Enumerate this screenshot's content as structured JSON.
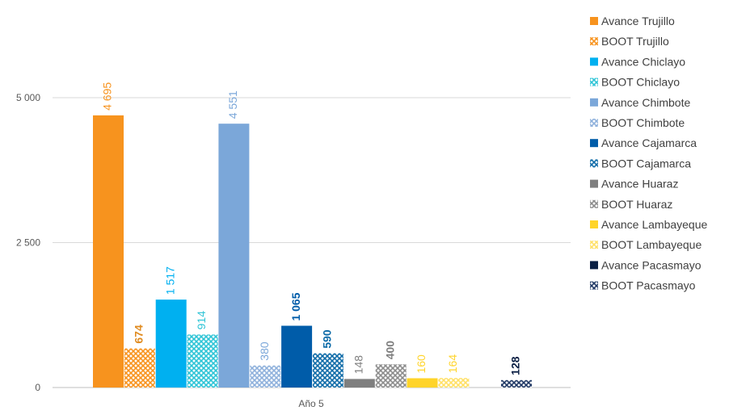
{
  "chart_data": {
    "type": "bar",
    "title": "",
    "xlabel": "",
    "ylabel": "",
    "categories": [
      "Año 5"
    ],
    "ylim": [
      0,
      6000
    ],
    "yticks": [
      0,
      2500,
      5000
    ],
    "ytick_labels": [
      "0",
      "2 500",
      "5 000"
    ],
    "grid": true,
    "legend_position": "right",
    "series": [
      {
        "name": "Avance Trujillo",
        "values": [
          4695
        ],
        "label": "4 695",
        "color": "#F7931E",
        "pattern": "solid",
        "label_color": "#F7931E",
        "bold": false
      },
      {
        "name": "BOOT Trujillo",
        "values": [
          674
        ],
        "label": "674",
        "color": "#F7931E",
        "pattern": "hatched",
        "label_color": "#E08A1E",
        "bold": true
      },
      {
        "name": "Avance Chiclayo",
        "values": [
          1517
        ],
        "label": "1 517",
        "color": "#00B0F0",
        "pattern": "solid",
        "label_color": "#00B0F0",
        "bold": false
      },
      {
        "name": "BOOT Chiclayo",
        "values": [
          914
        ],
        "label": "914",
        "color": "#2EC4D6",
        "pattern": "hatched",
        "label_color": "#2EC4D6",
        "bold": false
      },
      {
        "name": "Avance Chimbote",
        "values": [
          4551
        ],
        "label": "4 551",
        "color": "#7BA7D9",
        "pattern": "solid",
        "label_color": "#7BA7D9",
        "bold": false
      },
      {
        "name": "BOOT Chimbote",
        "values": [
          380
        ],
        "label": "380",
        "color": "#8FB1DC",
        "pattern": "hatched",
        "label_color": "#7BA7D9",
        "bold": false
      },
      {
        "name": "Avance Cajamarca",
        "values": [
          1065
        ],
        "label": "1 065",
        "color": "#005CA9",
        "pattern": "solid",
        "label_color": "#005CA9",
        "bold": true
      },
      {
        "name": "BOOT Cajamarca",
        "values": [
          590
        ],
        "label": "590",
        "color": "#0E6BA8",
        "pattern": "hatched",
        "label_color": "#0E6BA8",
        "bold": true
      },
      {
        "name": "Avance Huaraz",
        "values": [
          148
        ],
        "label": "148",
        "color": "#7F7F7F",
        "pattern": "solid",
        "label_color": "#7F7F7F",
        "bold": false
      },
      {
        "name": "BOOT Huaraz",
        "values": [
          400
        ],
        "label": "400",
        "color": "#8C8C8C",
        "pattern": "hatched",
        "label_color": "#7F7F7F",
        "bold": true
      },
      {
        "name": "Avance Lambayeque",
        "values": [
          160
        ],
        "label": "160",
        "color": "#FFD42A",
        "pattern": "solid",
        "label_color": "#FFD42A",
        "bold": false
      },
      {
        "name": "BOOT Lambayeque",
        "values": [
          164
        ],
        "label": "164",
        "color": "#FFE066",
        "pattern": "hatched",
        "label_color": "#FFD42A",
        "bold": false
      },
      {
        "name": "Avance Pacasmayo",
        "values": [
          0
        ],
        "label": "",
        "color": "#0A1F44",
        "pattern": "solid",
        "label_color": "#0A1F44",
        "bold": true
      },
      {
        "name": "BOOT Pacasmayo",
        "values": [
          128
        ],
        "label": "128",
        "color": "#1F3864",
        "pattern": "hatched",
        "label_color": "#0A1F44",
        "bold": true
      }
    ]
  }
}
